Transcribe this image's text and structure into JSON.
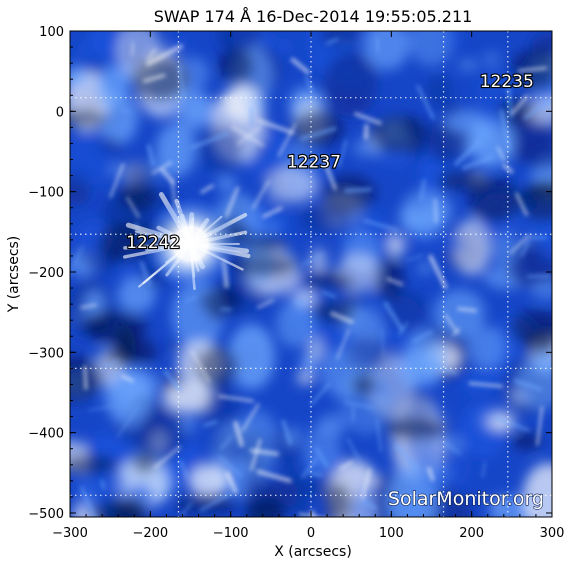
{
  "chart_data": {
    "type": "heatmap",
    "title": "SWAP 174 Å 16-Dec-2014 19:55:05.211",
    "xlabel": "X (arcsecs)",
    "ylabel": "Y (arcsecs)",
    "xlim": [
      -300,
      300
    ],
    "ylim": [
      -505,
      100
    ],
    "x_ticks": [
      -300,
      -200,
      -100,
      0,
      100,
      200,
      300
    ],
    "x_tick_labels": [
      "−300",
      "−200",
      "−100",
      "0",
      "100",
      "200",
      "300"
    ],
    "y_ticks": [
      100,
      0,
      -100,
      -200,
      -300,
      -400,
      -500
    ],
    "y_tick_labels": [
      "100",
      "0",
      "−100",
      "−200",
      "−300",
      "−400",
      "−500"
    ],
    "grid": true,
    "colormap": [
      "#000a33",
      "#0b2a8f",
      "#1a55e0",
      "#6ea8ff",
      "#ffffff"
    ],
    "active_regions": [
      {
        "label": "12235",
        "x": 210,
        "y": 30
      },
      {
        "label": "12237",
        "x": -30,
        "y": -70
      },
      {
        "label": "12242",
        "x": -230,
        "y": -170
      }
    ],
    "watermark": "SolarMonitor.org"
  }
}
